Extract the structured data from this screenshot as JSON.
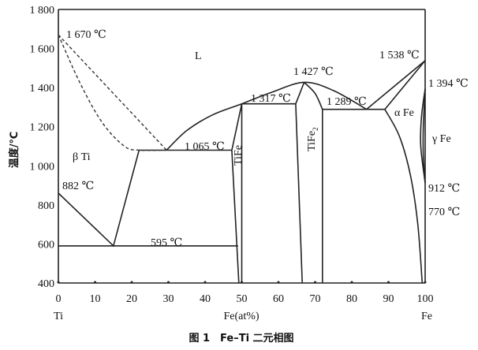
{
  "caption": "图 1　Fe–Ti 二元相图",
  "axes": {
    "ylabel": "温度/℃",
    "xlabel": "Fe(at%)",
    "x_left_label": "Ti",
    "x_right_label": "Fe",
    "xlim": [
      0,
      100
    ],
    "ylim": [
      400,
      1800
    ],
    "x_ticks": [
      "0",
      "10",
      "20",
      "30",
      "40",
      "50",
      "60",
      "70",
      "80",
      "90",
      "100"
    ],
    "x_tick_values": [
      0,
      10,
      20,
      30,
      40,
      50,
      60,
      70,
      80,
      90,
      100
    ],
    "y_ticks": [
      "400",
      "600",
      "800",
      "1 000",
      "1 200",
      "1 400",
      "1 600",
      "1 800"
    ],
    "y_tick_values": [
      400,
      600,
      800,
      1000,
      1200,
      1400,
      1600,
      1800
    ]
  },
  "labels": {
    "t1670": "1 670 ℃",
    "liquid": "L",
    "t1427": "1 427 ℃",
    "t1538": "1 538 ℃",
    "t1394": "1 394 ℃",
    "t1317": "1 317 ℃",
    "t1289": "1 289 ℃",
    "alpha_fe": "α Fe",
    "gamma_fe": "γ Fe",
    "t1065": "1 065 ℃",
    "beta_ti": "β Ti",
    "tife": "TiFe",
    "tife2_base": "TiFe",
    "tife2_sub": "2",
    "t882": "882 ℃",
    "t912": "912 ℃",
    "t770": "770 ℃",
    "t595": "595 ℃"
  },
  "lines": {
    "solid": [
      [
        [
          0,
          860
        ],
        [
          15,
          590
        ],
        [
          22,
          1080
        ]
      ],
      [
        [
          0,
          590
        ],
        [
          49,
          590
        ]
      ],
      [
        [
          22,
          1080
        ],
        [
          47.3,
          1080
        ]
      ],
      [
        [
          47.3,
          1080
        ],
        [
          50,
          1317
        ]
      ],
      [
        [
          47.3,
          1080
        ],
        [
          49.2,
          400
        ]
      ],
      [
        [
          50,
          1317
        ],
        [
          50,
          400
        ]
      ],
      [
        [
          50,
          1317
        ],
        [
          64.7,
          1317
        ]
      ],
      [
        [
          64.7,
          1317
        ],
        [
          67,
          1427
        ]
      ],
      [
        [
          64.7,
          1317
        ],
        [
          66.5,
          400
        ]
      ],
      [
        [
          72,
          1289
        ],
        [
          72,
          400
        ]
      ],
      [
        [
          72,
          1289
        ],
        [
          89,
          1289
        ]
      ],
      [
        [
          89,
          1289
        ],
        [
          100,
          1538
        ]
      ],
      [
        [
          84,
          1289
        ],
        [
          100,
          1538
        ]
      ]
    ],
    "curves": [
      [
        [
          29.5,
          1080
        ],
        [
          35,
          1180
        ],
        [
          42,
          1260
        ],
        [
          50,
          1317
        ],
        [
          58,
          1375
        ],
        [
          67,
          1427
        ],
        [
          75,
          1385
        ],
        [
          84,
          1289
        ]
      ],
      [
        [
          67,
          1427
        ],
        [
          70,
          1370
        ],
        [
          72,
          1289
        ]
      ],
      [
        [
          89,
          1289
        ],
        [
          93,
          1150
        ],
        [
          96,
          950
        ],
        [
          98,
          700
        ],
        [
          99.2,
          400
        ]
      ],
      [
        [
          100,
          1394
        ],
        [
          99,
          1250
        ],
        [
          98.8,
          1100
        ],
        [
          100,
          912
        ]
      ],
      [
        [
          100,
          1394
        ],
        [
          99.5,
          1200
        ],
        [
          99.5,
          1050
        ],
        [
          100,
          912
        ]
      ]
    ],
    "dashed": [
      [
        [
          0,
          1670
        ],
        [
          29.5,
          1080
        ]
      ],
      [
        [
          0,
          1670
        ],
        [
          6,
          1420
        ],
        [
          12,
          1220
        ],
        [
          18,
          1100
        ],
        [
          22,
          1080
        ],
        [
          29.5,
          1080
        ]
      ]
    ]
  }
}
